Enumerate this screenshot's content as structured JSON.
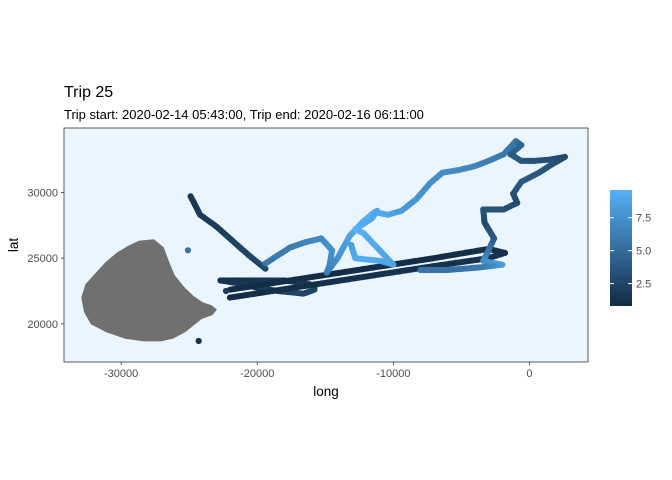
{
  "chart_data": {
    "type": "scatter",
    "title": "Trip 25",
    "subtitle": "Trip start: 2020-02-14 05:43:00, Trip end: 2020-02-16 06:11:00",
    "xlabel": "long",
    "ylabel": "lat",
    "xlim": [
      -34200,
      4300
    ],
    "ylim": [
      17100,
      34900
    ],
    "x_ticks": [
      -30000,
      -20000,
      -10000,
      0
    ],
    "x_tick_labels": [
      "-30000",
      "-20000",
      "-10000",
      "0"
    ],
    "y_ticks": [
      20000,
      25000,
      30000
    ],
    "y_tick_labels": [
      "20000",
      "25000",
      "30000"
    ],
    "grid": false,
    "panel_background": "#ebf5fe",
    "land_color": "#707070",
    "legend": {
      "title": "",
      "placement": "right",
      "range": [
        0.8,
        9.6
      ],
      "ticks": [
        2.5,
        5.0,
        7.5
      ],
      "tick_labels": [
        "2.5",
        "5.0",
        "7.5"
      ],
      "low_color": "#132b43",
      "high_color": "#56b1f7"
    },
    "land_outline": [
      [
        -29500,
        25900
      ],
      [
        -28700,
        26300
      ],
      [
        -27600,
        26400
      ],
      [
        -26900,
        25800
      ],
      [
        -26500,
        24700
      ],
      [
        -26100,
        23700
      ],
      [
        -25400,
        22800
      ],
      [
        -24700,
        22100
      ],
      [
        -24000,
        21600
      ],
      [
        -23400,
        21400
      ],
      [
        -23000,
        21100
      ],
      [
        -23300,
        20700
      ],
      [
        -24100,
        20400
      ],
      [
        -24700,
        19900
      ],
      [
        -25300,
        19400
      ],
      [
        -26200,
        18900
      ],
      [
        -27100,
        18700
      ],
      [
        -28300,
        18700
      ],
      [
        -29700,
        18900
      ],
      [
        -31100,
        19400
      ],
      [
        -32200,
        20000
      ],
      [
        -32700,
        20900
      ],
      [
        -32900,
        22000
      ],
      [
        -32600,
        23000
      ],
      [
        -31900,
        23800
      ],
      [
        -31100,
        24700
      ],
      [
        -30300,
        25400
      ]
    ],
    "tracks": [
      {
        "points": [
          [
            -24900,
            29700
          ],
          [
            -24200,
            28300
          ],
          [
            -23000,
            27400
          ],
          [
            -21800,
            26300
          ],
          [
            -20600,
            25200
          ],
          [
            -19400,
            24200
          ]
        ],
        "values": [
          1.6,
          1.8,
          2.0,
          2.3,
          2.5,
          2.8
        ]
      },
      {
        "points": [
          [
            -22500,
            23300
          ],
          [
            -21000,
            23300
          ],
          [
            -19500,
            23300
          ],
          [
            -18000,
            23300
          ],
          [
            -16500,
            23100
          ],
          [
            -15800,
            22900
          ],
          [
            -15800,
            22600
          ],
          [
            -16600,
            22300
          ],
          [
            -18500,
            22500
          ],
          [
            -20200,
            22800
          ],
          [
            -21500,
            23100
          ],
          [
            -22700,
            23300
          ]
        ],
        "values": [
          1.2,
          1.4,
          1.5,
          1.7,
          1.9,
          2.1,
          2.3,
          2.5,
          2.2,
          1.9,
          1.6,
          1.3
        ]
      },
      {
        "points": [
          [
            -22000,
            22000
          ],
          [
            -17000,
            22800
          ],
          [
            -12000,
            23600
          ],
          [
            -7000,
            24400
          ],
          [
            -3000,
            25000
          ],
          [
            -1800,
            25400
          ],
          [
            -3000,
            25700
          ],
          [
            -7000,
            25000
          ],
          [
            -12000,
            24200
          ],
          [
            -17000,
            23400
          ],
          [
            -22000,
            22600
          ]
        ],
        "values": [
          1.0,
          1.1,
          1.2,
          1.3,
          1.3,
          1.2,
          1.1,
          1.0,
          1.0,
          1.0,
          1.0
        ]
      },
      {
        "points": [
          [
            -19400,
            24600
          ],
          [
            -17600,
            25800
          ],
          [
            -16500,
            26200
          ],
          [
            -15300,
            26500
          ],
          [
            -14500,
            25600
          ],
          [
            -14700,
            24400
          ],
          [
            -14900,
            23900
          ],
          [
            -14100,
            25000
          ],
          [
            -13200,
            26700
          ],
          [
            -12200,
            27800
          ],
          [
            -11400,
            28500
          ],
          [
            -10400,
            28300
          ],
          [
            -9400,
            28600
          ],
          [
            -8300,
            29500
          ],
          [
            -7300,
            30700
          ],
          [
            -6400,
            31500
          ],
          [
            -5200,
            31700
          ],
          [
            -4000,
            32000
          ],
          [
            -3000,
            32400
          ],
          [
            -1900,
            32900
          ],
          [
            -1000,
            33900
          ],
          [
            -600,
            33600
          ],
          [
            -1400,
            32900
          ],
          [
            -600,
            32400
          ],
          [
            400,
            32400
          ],
          [
            1500,
            32500
          ],
          [
            2600,
            32700
          ],
          [
            1600,
            32100
          ],
          [
            700,
            31500
          ],
          [
            -600,
            30800
          ],
          [
            -1200,
            29900
          ],
          [
            -900,
            29200
          ],
          [
            -1900,
            28700
          ],
          [
            -3400,
            28700
          ],
          [
            -3300,
            27700
          ],
          [
            -2600,
            26500
          ],
          [
            -3000,
            25600
          ],
          [
            -3400,
            24800
          ],
          [
            -2000,
            24500
          ],
          [
            -3600,
            24300
          ],
          [
            -6000,
            24100
          ],
          [
            -8000,
            24100
          ]
        ],
        "values": [
          5.8,
          6.2,
          6.6,
          7.0,
          7.5,
          6.8,
          6.2,
          7.4,
          8.6,
          9.4,
          9.6,
          8.9,
          8.2,
          7.8,
          7.4,
          7.2,
          7.0,
          6.8,
          6.3,
          5.9,
          5.6,
          4.6,
          4.1,
          3.7,
          3.4,
          3.1,
          2.8,
          3.2,
          3.6,
          3.9,
          3.3,
          2.8,
          3.2,
          3.6,
          2.8,
          3.8,
          5.6,
          7.2,
          8.3,
          6.0,
          5.4,
          5.7
        ]
      },
      {
        "points": [
          [
            -13100,
            26000
          ],
          [
            -12800,
            25000
          ],
          [
            -12000,
            24900
          ],
          [
            -11000,
            24800
          ],
          [
            -10000,
            24500
          ],
          [
            -12200,
            26900
          ],
          [
            -12800,
            27200
          ],
          [
            -11600,
            28000
          ],
          [
            -11200,
            28600
          ]
        ],
        "values": [
          8.2,
          9.0,
          9.3,
          9.0,
          8.7,
          9.3,
          9.6,
          9.1,
          8.8
        ]
      }
    ],
    "points": [
      {
        "x": -24300,
        "y": 18700,
        "value": 1.3
      },
      {
        "x": -22300,
        "y": 22500,
        "value": 2.0
      },
      {
        "x": -25100,
        "y": 25600,
        "value": 5.5
      }
    ]
  }
}
